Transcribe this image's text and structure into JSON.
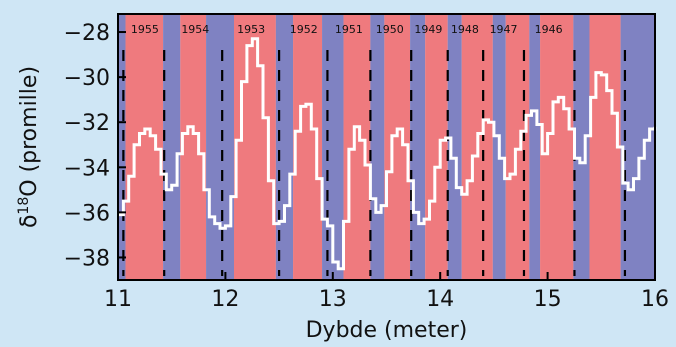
{
  "chart_data": {
    "type": "line",
    "xlabel": "Dybde (meter)",
    "ylabel_prefix": "δ",
    "ylabel_sup": "18",
    "ylabel_suffix": "O (promille)",
    "xlim": [
      11,
      16
    ],
    "ylim": [
      -39,
      -27.2
    ],
    "xticks": [
      11,
      12,
      13,
      14,
      15,
      16
    ],
    "yticks": [
      -28,
      -30,
      -32,
      -34,
      -36,
      -38
    ],
    "colors": {
      "summer": "#ef7a7e",
      "winter": "#7f82c2",
      "line": "#ffffff",
      "divider": "#000000",
      "frame": "#000000"
    },
    "seasons": [
      {
        "kind": "winter",
        "from": 11.0,
        "to": 11.07
      },
      {
        "kind": "summer",
        "from": 11.07,
        "to": 11.42
      },
      {
        "kind": "winter",
        "from": 11.42,
        "to": 11.58
      },
      {
        "kind": "summer",
        "from": 11.58,
        "to": 11.82
      },
      {
        "kind": "winter",
        "from": 11.82,
        "to": 12.08
      },
      {
        "kind": "summer",
        "from": 12.08,
        "to": 12.47
      },
      {
        "kind": "winter",
        "from": 12.47,
        "to": 12.63
      },
      {
        "kind": "summer",
        "from": 12.63,
        "to": 12.9
      },
      {
        "kind": "winter",
        "from": 12.9,
        "to": 13.1
      },
      {
        "kind": "summer",
        "from": 13.1,
        "to": 13.35
      },
      {
        "kind": "winter",
        "from": 13.35,
        "to": 13.48
      },
      {
        "kind": "summer",
        "from": 13.48,
        "to": 13.72
      },
      {
        "kind": "winter",
        "from": 13.72,
        "to": 13.86
      },
      {
        "kind": "summer",
        "from": 13.86,
        "to": 14.07
      },
      {
        "kind": "winter",
        "from": 14.07,
        "to": 14.2
      },
      {
        "kind": "summer",
        "from": 14.2,
        "to": 14.49
      },
      {
        "kind": "winter",
        "from": 14.49,
        "to": 14.61
      },
      {
        "kind": "summer",
        "from": 14.61,
        "to": 14.83
      },
      {
        "kind": "winter",
        "from": 14.83,
        "to": 14.93
      },
      {
        "kind": "summer",
        "from": 14.93,
        "to": 15.24
      },
      {
        "kind": "winter",
        "from": 15.24,
        "to": 15.39
      },
      {
        "kind": "summer",
        "from": 15.39,
        "to": 15.68
      },
      {
        "kind": "winter",
        "from": 15.68,
        "to": 16.0
      }
    ],
    "year_boundaries": [
      11.05,
      11.43,
      11.97,
      12.5,
      12.95,
      13.35,
      13.73,
      14.07,
      14.4,
      14.78,
      15.25,
      15.72
    ],
    "year_labels": [
      {
        "year": "1955",
        "x": 11.25
      },
      {
        "year": "1954",
        "x": 11.72
      },
      {
        "year": "1953",
        "x": 12.24
      },
      {
        "year": "1952",
        "x": 12.73
      },
      {
        "year": "1951",
        "x": 13.15
      },
      {
        "year": "1950",
        "x": 13.53
      },
      {
        "year": "1949",
        "x": 13.89
      },
      {
        "year": "1948",
        "x": 14.23
      },
      {
        "year": "1947",
        "x": 14.59
      },
      {
        "year": "1946",
        "x": 15.01
      }
    ],
    "series": [
      {
        "x": [
          11.0,
          11.05,
          11.1,
          11.15,
          11.2,
          11.25,
          11.3,
          11.35,
          11.4,
          11.45,
          11.5,
          11.55,
          11.6,
          11.65,
          11.7,
          11.75,
          11.8,
          11.85,
          11.9,
          11.95,
          12.0,
          12.05,
          12.1,
          12.15,
          12.2,
          12.25,
          12.3,
          12.35,
          12.4,
          12.45,
          12.5,
          12.55,
          12.6,
          12.65,
          12.7,
          12.75,
          12.8,
          12.85,
          12.9,
          12.95,
          13.0,
          13.05,
          13.1,
          13.15,
          13.2,
          13.25,
          13.3,
          13.35,
          13.4,
          13.45,
          13.5,
          13.55,
          13.6,
          13.65,
          13.7,
          13.75,
          13.8,
          13.85,
          13.9,
          13.95,
          14.0,
          14.05,
          14.1,
          14.15,
          14.2,
          14.25,
          14.3,
          14.35,
          14.4,
          14.45,
          14.5,
          14.55,
          14.6,
          14.65,
          14.7,
          14.75,
          14.8,
          14.85,
          14.9,
          14.95,
          15.0,
          15.05,
          15.1,
          15.15,
          15.2,
          15.25,
          15.3,
          15.35,
          15.4,
          15.45,
          15.5,
          15.55,
          15.6,
          15.65,
          15.7,
          15.75,
          15.8,
          15.85,
          15.9,
          15.95,
          16.0
        ],
        "values": [
          -36.1,
          -35.5,
          -34.4,
          -33.0,
          -32.5,
          -32.3,
          -32.6,
          -33.2,
          -34.3,
          -35.0,
          -34.8,
          -33.4,
          -32.5,
          -32.2,
          -32.5,
          -33.4,
          -35.0,
          -36.2,
          -36.5,
          -36.7,
          -36.6,
          -35.3,
          -32.8,
          -30.2,
          -28.6,
          -28.3,
          -29.5,
          -31.8,
          -34.6,
          -36.5,
          -36.4,
          -35.7,
          -34.3,
          -32.4,
          -31.3,
          -31.2,
          -32.3,
          -34.5,
          -36.3,
          -36.6,
          -38.2,
          -38.5,
          -36.4,
          -33.2,
          -32.2,
          -32.8,
          -33.9,
          -35.4,
          -36.0,
          -35.7,
          -34.2,
          -32.6,
          -32.3,
          -33.0,
          -34.6,
          -36.0,
          -36.5,
          -36.3,
          -35.5,
          -34.0,
          -32.8,
          -32.7,
          -33.6,
          -34.9,
          -35.2,
          -34.6,
          -33.5,
          -32.5,
          -31.9,
          -32.0,
          -32.6,
          -33.6,
          -34.5,
          -34.3,
          -33.2,
          -32.4,
          -31.7,
          -31.5,
          -32.1,
          -33.4,
          -32.5,
          -31.1,
          -30.9,
          -31.4,
          -32.3,
          -33.6,
          -33.8,
          -32.6,
          -30.9,
          -29.8,
          -29.9,
          -30.6,
          -31.6,
          -33.1,
          -34.7,
          -35.0,
          -34.5,
          -33.6,
          -32.8,
          -32.3,
          -32.2
        ]
      }
    ]
  }
}
